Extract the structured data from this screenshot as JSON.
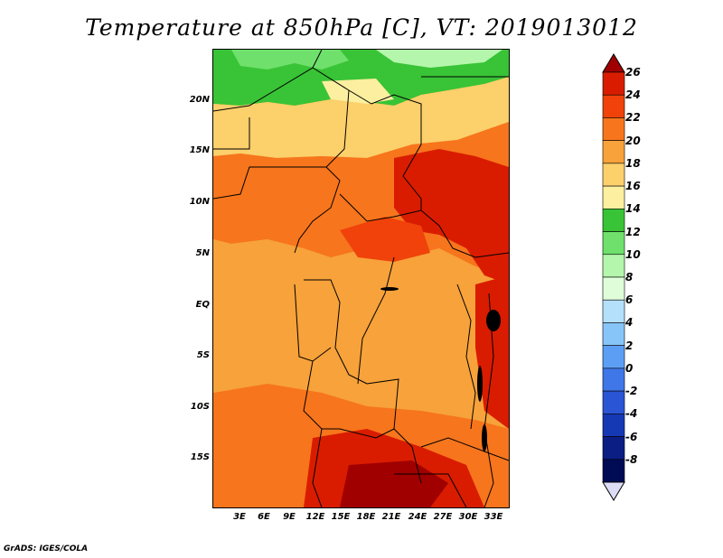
{
  "title": "Temperature at 850hPa [C], VT: 2019013012",
  "credit": "GrADS: IGES/COLA",
  "map": {
    "lat_labels": [
      "20N",
      "15N",
      "10N",
      "5N",
      "EQ",
      "5S",
      "10S",
      "15S"
    ],
    "lon_labels": [
      "3E",
      "6E",
      "9E",
      "12E",
      "15E",
      "18E",
      "21E",
      "24E",
      "27E",
      "30E",
      "33E"
    ]
  },
  "colorbar": {
    "labels": [
      "26",
      "24",
      "22",
      "20",
      "18",
      "16",
      "14",
      "12",
      "10",
      "8",
      "6",
      "4",
      "2",
      "0",
      "-2",
      "-4",
      "-6",
      "-8"
    ],
    "colors": [
      "#a00000",
      "#d91c00",
      "#f0420a",
      "#f7751c",
      "#f7a23a",
      "#fcd06b",
      "#fcef9f",
      "#39c336",
      "#6fe06c",
      "#b4f6ac",
      "#e0fdda",
      "#b5e0fb",
      "#87c4f8",
      "#5c9ef4",
      "#3f77e8",
      "#2a55d4",
      "#1538b5",
      "#0b1e84",
      "#000b55",
      "#dcdcf6"
    ]
  }
}
